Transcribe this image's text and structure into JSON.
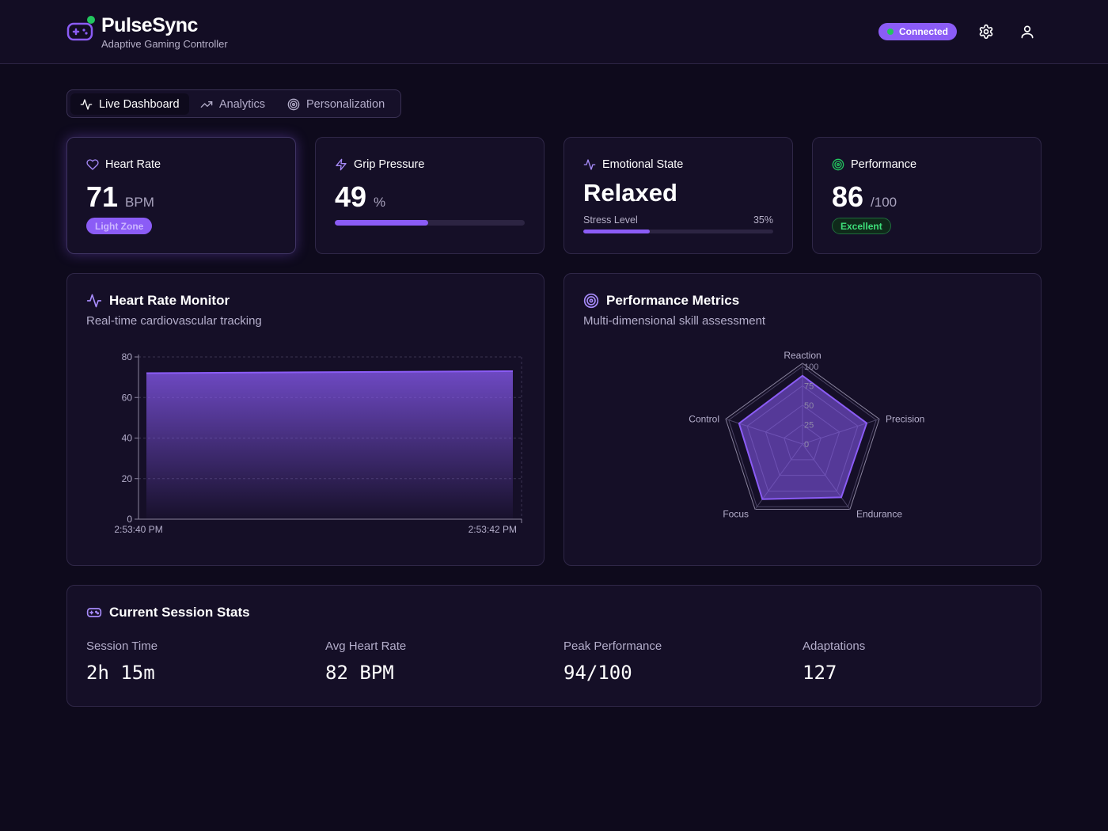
{
  "header": {
    "brand": "PulseSync",
    "subtitle": "Adaptive Gaming Controller",
    "status": "Connected",
    "icons": [
      "gamepad-icon",
      "settings-gear-icon",
      "user-icon"
    ],
    "colors": {
      "accent": "#8b5cf6",
      "status": "#22c55e"
    }
  },
  "tabs": [
    {
      "label": "Live Dashboard",
      "icon": "activity-icon",
      "active": true
    },
    {
      "label": "Analytics",
      "icon": "trending-up-icon",
      "active": false
    },
    {
      "label": "Personalization",
      "icon": "target-icon",
      "active": false
    }
  ],
  "metrics": {
    "heart_rate": {
      "title": "Heart Rate",
      "value": "71",
      "unit": "BPM",
      "zone": "Light Zone",
      "icon": "heart-icon"
    },
    "grip": {
      "title": "Grip Pressure",
      "value": "49",
      "unit": "%",
      "level": 0.49,
      "icon": "zap-icon"
    },
    "emotion": {
      "title": "Emotional State",
      "state": "Relaxed",
      "stress_label": "Stress Level",
      "stress_text": "35%",
      "stress": 0.35,
      "icon": "activity-icon"
    },
    "performance": {
      "title": "Performance",
      "value": "86",
      "unit": "/100",
      "rating": "Excellent",
      "icon": "target-icon"
    }
  },
  "hr_monitor": {
    "title": "Heart Rate Monitor",
    "subtitle": "Real-time cardiovascular tracking"
  },
  "perf_metrics": {
    "title": "Performance Metrics",
    "subtitle": "Multi-dimensional skill assessment"
  },
  "chart_data": [
    {
      "type": "area",
      "x": [
        "2:53:40 PM",
        "2:53:42 PM"
      ],
      "series": [
        {
          "values": [
            72,
            73
          ]
        }
      ],
      "yticks": [
        0,
        20,
        40,
        60,
        80
      ],
      "ylim": [
        0,
        80
      ],
      "grid": true,
      "color": "#8b5cf6"
    },
    {
      "type": "radar",
      "categories": [
        "Reaction",
        "Precision",
        "Endurance",
        "Focus",
        "Control"
      ],
      "values": [
        88,
        87,
        85,
        88,
        86
      ],
      "rticks": [
        0,
        25,
        50,
        75,
        100
      ],
      "rlim": [
        0,
        100
      ],
      "grid": true,
      "color": "#8b5cf6"
    }
  ],
  "session": {
    "title": "Current Session Stats",
    "stats": [
      {
        "label": "Session Time",
        "value": "2h 15m"
      },
      {
        "label": "Avg Heart Rate",
        "value": "82 BPM"
      },
      {
        "label": "Peak Performance",
        "value": "94/100"
      },
      {
        "label": "Adaptations",
        "value": "127"
      }
    ]
  }
}
